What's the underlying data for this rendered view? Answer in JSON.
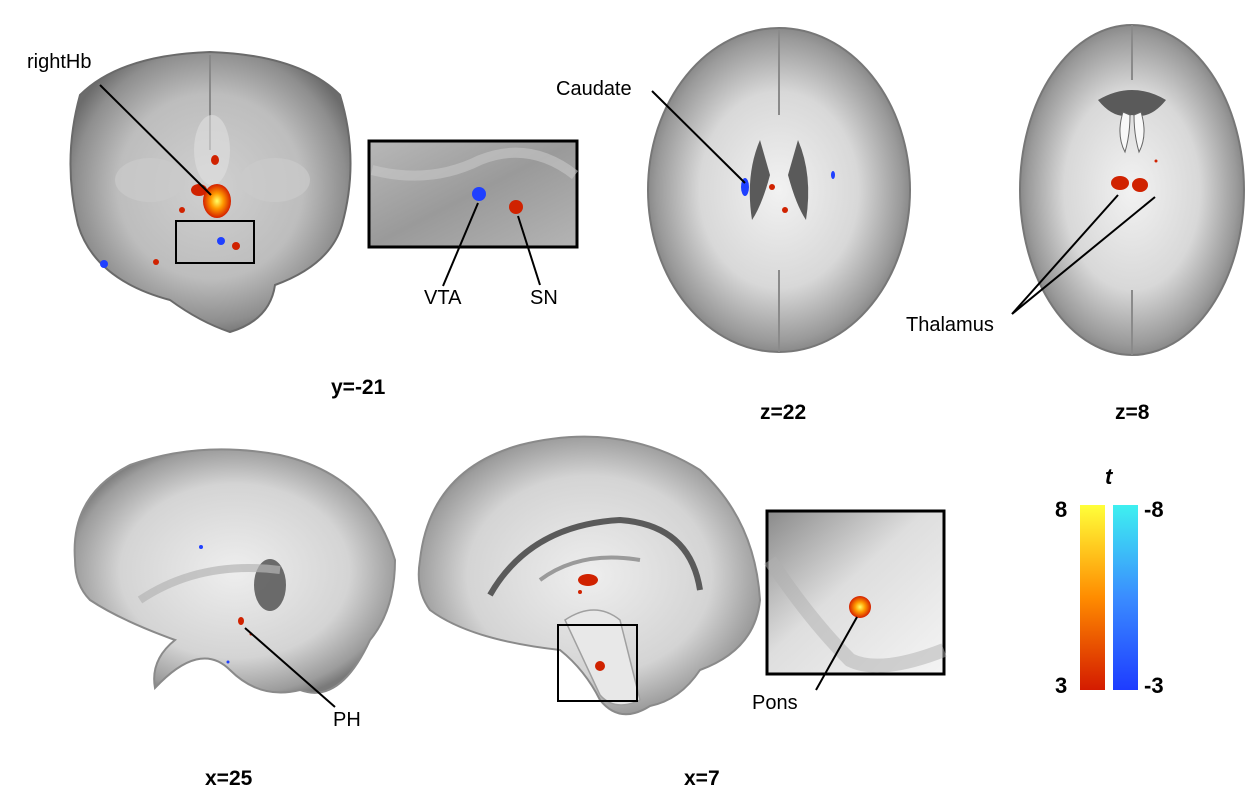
{
  "labels": {
    "right_hb": "rightHb",
    "vta": "VTA",
    "sn": "SN",
    "caudate": "Caudate",
    "thalamus": "Thalamus",
    "ph": "PH",
    "pons": "Pons"
  },
  "coords": {
    "coronal": "y=-21",
    "axial_22": "z=22",
    "axial_8": "z=8",
    "sagittal_25": "x=25",
    "sagittal_7": "x=7"
  },
  "colorbar": {
    "title": "t",
    "positive": {
      "max": "8",
      "min": "3",
      "colors": [
        "#ffff3a",
        "#ff8c00",
        "#d41b00"
      ]
    },
    "negative": {
      "max": "-8",
      "min": "-3",
      "colors": [
        "#3ef0f0",
        "#3a8cff",
        "#1e3cff"
      ]
    }
  }
}
